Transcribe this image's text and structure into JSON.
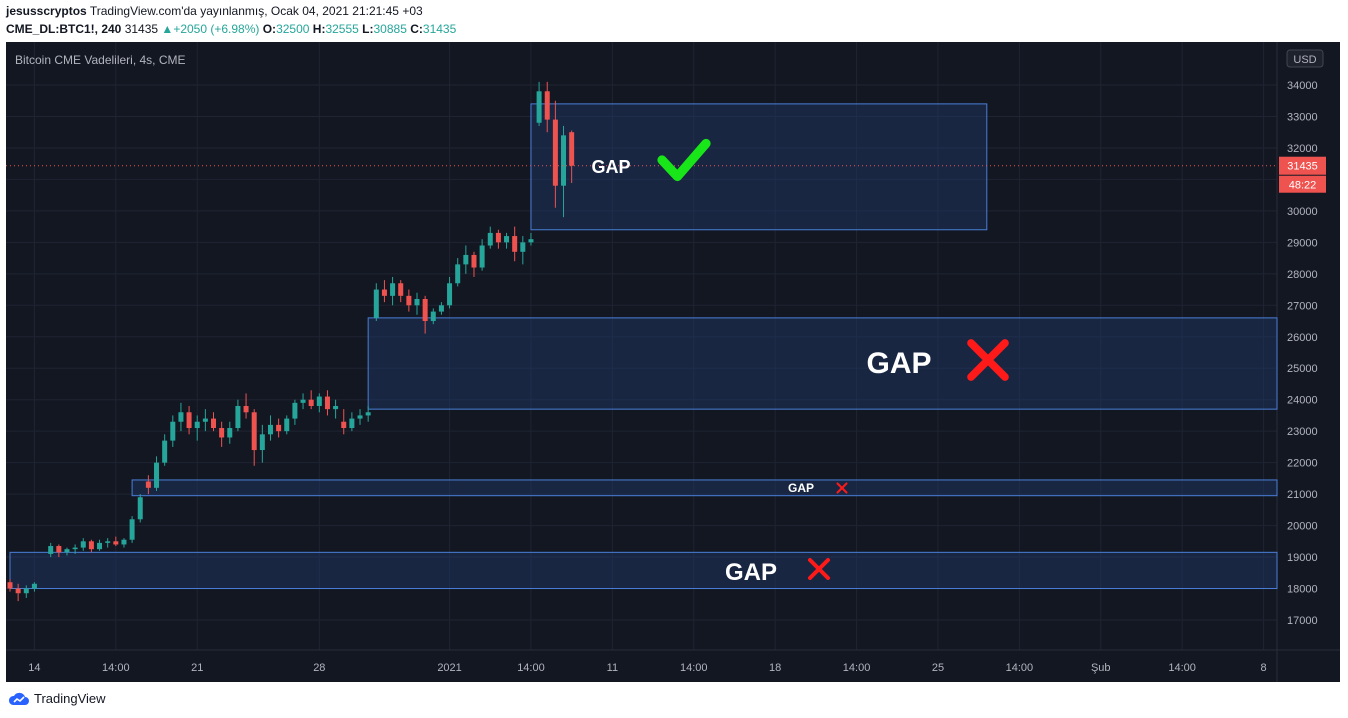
{
  "header": {
    "author": "jesusscryptos",
    "published": "TradingView.com'da yayınlanmış, Ocak 04, 2021 21:21:45 +03",
    "symbol": "CME_DL:BTC1!, 240",
    "price": "31435",
    "change": "+2050 (+6.98%)",
    "o_label": "O:",
    "o_value": "32500",
    "h_label": "H:",
    "h_value": "32555",
    "l_label": "L:",
    "l_value": "30885",
    "c_label": "C:",
    "c_value": "31435"
  },
  "chart_title": "Bitcoin CME Vadelileri, 4s, CME",
  "currency": "USD",
  "last_price_label": "31435",
  "countdown_label": "48:22",
  "footer": {
    "brand": "TradingView"
  },
  "colors": {
    "background": "#131722",
    "grid": "#1f2433",
    "text": "#b2b5be",
    "up": "#26a69a",
    "down": "#ef5350",
    "zone_fill": "#1e3a6b",
    "zone_border": "#4a7fd8",
    "check": "#19e619",
    "cross": "#ff1a1a"
  },
  "chart_data": {
    "type": "candlestick",
    "title": "Bitcoin CME Vadelileri, 4s, CME",
    "y_axis": {
      "range": [
        16500,
        35200
      ],
      "ticks": [
        17000,
        18000,
        19000,
        20000,
        21000,
        22000,
        23000,
        24000,
        25000,
        26000,
        27000,
        28000,
        29000,
        30000,
        31000,
        32000,
        33000,
        34000
      ],
      "unit": "USD",
      "position": "right"
    },
    "x_axis": {
      "ticks": [
        {
          "label": "14",
          "i": 3
        },
        {
          "label": "14:00",
          "i": 13
        },
        {
          "label": "21",
          "i": 23
        },
        {
          "label": "28",
          "i": 38
        },
        {
          "label": "2021",
          "i": 54
        },
        {
          "label": "14:00",
          "i": 64
        },
        {
          "label": "11",
          "i": 74
        },
        {
          "label": "14:00",
          "i": 84
        },
        {
          "label": "18",
          "i": 94
        },
        {
          "label": "14:00",
          "i": 104
        },
        {
          "label": "25",
          "i": 114
        },
        {
          "label": "14:00",
          "i": 124
        },
        {
          "label": "Şub",
          "i": 134
        },
        {
          "label": "14:00",
          "i": 144
        },
        {
          "label": "8",
          "i": 154
        }
      ]
    },
    "grid": true,
    "last_price": 31435,
    "candles": [
      [
        18200,
        18300,
        17900,
        18000
      ],
      [
        18000,
        18150,
        17600,
        17850
      ],
      [
        17850,
        18100,
        17700,
        18000
      ],
      [
        18000,
        18200,
        17900,
        18150
      ],
      [
        19100,
        19450,
        19000,
        19350
      ],
      [
        19350,
        19400,
        19000,
        19150
      ],
      [
        19150,
        19300,
        19050,
        19250
      ],
      [
        19250,
        19400,
        19100,
        19300
      ],
      [
        19300,
        19600,
        19200,
        19500
      ],
      [
        19500,
        19550,
        19150,
        19250
      ],
      [
        19250,
        19550,
        19200,
        19450
      ],
      [
        19450,
        19600,
        19300,
        19500
      ],
      [
        19500,
        19650,
        19350,
        19400
      ],
      [
        19400,
        19600,
        19300,
        19550
      ],
      [
        19550,
        20300,
        19450,
        20200
      ],
      [
        20200,
        21000,
        20100,
        20900
      ],
      [
        21400,
        21600,
        21000,
        21200
      ],
      [
        21200,
        22200,
        21100,
        22000
      ],
      [
        22000,
        22900,
        21900,
        22700
      ],
      [
        22700,
        23500,
        22500,
        23300
      ],
      [
        23300,
        23900,
        23000,
        23600
      ],
      [
        23600,
        23800,
        22900,
        23100
      ],
      [
        23100,
        23500,
        22700,
        23300
      ],
      [
        23300,
        23700,
        23000,
        23400
      ],
      [
        23400,
        23600,
        23000,
        23100
      ],
      [
        23100,
        23300,
        22500,
        22800
      ],
      [
        22800,
        23300,
        22600,
        23100
      ],
      [
        23100,
        24000,
        23000,
        23800
      ],
      [
        23800,
        24200,
        23400,
        23600
      ],
      [
        23600,
        23700,
        21900,
        22400
      ],
      [
        22400,
        23200,
        22000,
        22900
      ],
      [
        22900,
        23500,
        22700,
        23200
      ],
      [
        23200,
        23400,
        22800,
        23000
      ],
      [
        23000,
        23500,
        22900,
        23400
      ],
      [
        23400,
        24000,
        23200,
        23900
      ],
      [
        23900,
        24200,
        23700,
        24000
      ],
      [
        24000,
        24300,
        23700,
        23800
      ],
      [
        23800,
        24200,
        23600,
        24100
      ],
      [
        24100,
        24300,
        23500,
        23700
      ],
      [
        23700,
        24000,
        23400,
        23800
      ],
      [
        23300,
        23700,
        22900,
        23100
      ],
      [
        23100,
        23600,
        23000,
        23400
      ],
      [
        23400,
        23700,
        23200,
        23500
      ],
      [
        23500,
        23800,
        23300,
        23600
      ],
      [
        26600,
        27700,
        26500,
        27500
      ],
      [
        27500,
        27800,
        27100,
        27300
      ],
      [
        27300,
        27900,
        27000,
        27700
      ],
      [
        27700,
        27800,
        27100,
        27300
      ],
      [
        27300,
        27500,
        26800,
        27000
      ],
      [
        27000,
        27400,
        26700,
        27200
      ],
      [
        27200,
        27300,
        26100,
        26500
      ],
      [
        26500,
        26900,
        26400,
        26800
      ],
      [
        26800,
        27100,
        26700,
        27000
      ],
      [
        27000,
        27900,
        26900,
        27700
      ],
      [
        27700,
        28500,
        27600,
        28300
      ],
      [
        28300,
        28900,
        28000,
        28600
      ],
      [
        28600,
        28700,
        27900,
        28200
      ],
      [
        28200,
        29100,
        28100,
        28900
      ],
      [
        28900,
        29500,
        28800,
        29300
      ],
      [
        29300,
        29400,
        28800,
        29000
      ],
      [
        29000,
        29300,
        28800,
        29200
      ],
      [
        29200,
        29500,
        28400,
        28700
      ],
      [
        28700,
        29200,
        28300,
        29000
      ],
      [
        29000,
        29300,
        28900,
        29100
      ],
      [
        32800,
        34100,
        32700,
        33800
      ],
      [
        33800,
        34100,
        32500,
        32900
      ],
      [
        32900,
        33500,
        30100,
        30800
      ],
      [
        30800,
        32700,
        29800,
        32400
      ],
      [
        32500,
        32555,
        30885,
        31435
      ]
    ],
    "candle_x_index": [
      0,
      1,
      2,
      3,
      5,
      6,
      7,
      8,
      9,
      10,
      11,
      12,
      13,
      14,
      15,
      16,
      17,
      18,
      19,
      20,
      21,
      22,
      23,
      24,
      25,
      26,
      27,
      28,
      29,
      30,
      31,
      32,
      33,
      34,
      35,
      36,
      37,
      38,
      39,
      40,
      41,
      42,
      43,
      44,
      45,
      46,
      47,
      48,
      49,
      50,
      51,
      52,
      53,
      54,
      55,
      56,
      57,
      58,
      59,
      60,
      61,
      62,
      63,
      64,
      65,
      66,
      67,
      68,
      69
    ],
    "gap_zones": [
      {
        "label": "GAP",
        "top": 33400,
        "bottom": 29400,
        "x_from": 64,
        "x_to": 120,
        "status": "filled",
        "mark": "check",
        "label_size": "medium"
      },
      {
        "label": "GAP",
        "top": 26600,
        "bottom": 23700,
        "x_from": 44,
        "x_to": "right_edge",
        "status": "unfilled",
        "mark": "cross",
        "label_size": "large"
      },
      {
        "label": "GAP",
        "top": 21450,
        "bottom": 20950,
        "x_from": 15,
        "x_to": "right_edge",
        "status": "unfilled",
        "mark": "cross",
        "label_size": "small"
      },
      {
        "label": "GAP",
        "top": 19150,
        "bottom": 18000,
        "x_from": 0,
        "x_to": "right_edge",
        "status": "unfilled",
        "mark": "cross",
        "label_size": "medium"
      }
    ]
  }
}
